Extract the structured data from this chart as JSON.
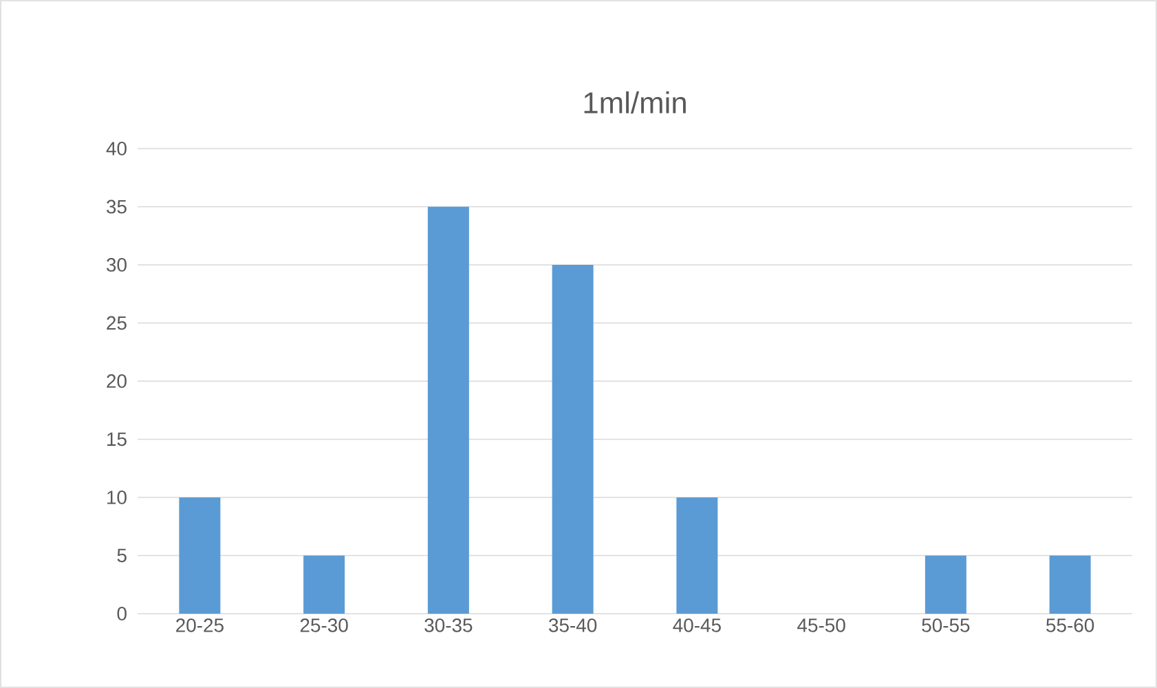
{
  "chart_data": {
    "type": "bar",
    "title": "1ml/min",
    "categories": [
      "20-25",
      "25-30",
      "30-35",
      "35-40",
      "40-45",
      "45-50",
      "50-55",
      "55-60"
    ],
    "values": [
      10,
      5,
      35,
      30,
      10,
      0,
      5,
      5
    ],
    "color": "#5b9bd5",
    "ylim": [
      0,
      40
    ],
    "yticks": [
      0,
      5,
      10,
      15,
      20,
      25,
      30,
      35,
      40
    ],
    "grid": "y"
  }
}
